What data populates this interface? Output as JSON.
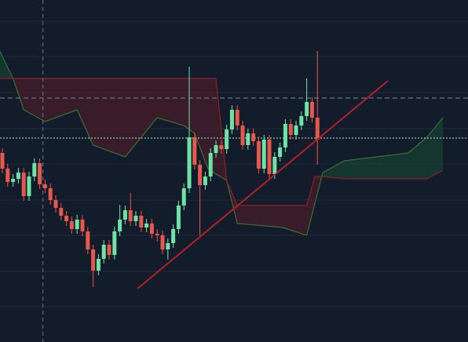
{
  "chart_data": {
    "type": "candlestick",
    "background": "#131c2b",
    "xlim": [
      -0.44,
      87.2
    ],
    "ylim": [
      0,
      436
    ],
    "grid_y": [
      409,
      364,
      318,
      272,
      227,
      181,
      136,
      90,
      45
    ],
    "up_color": "#6ee3a8",
    "down_color": "#e6574d",
    "open": [
      241,
      221,
      204,
      208,
      216,
      186,
      211,
      228,
      201,
      196,
      181,
      171,
      161,
      154,
      144,
      156,
      141,
      118,
      91,
      106,
      124,
      111,
      141,
      156,
      168,
      154,
      161,
      146,
      151,
      138,
      136,
      118,
      126,
      144,
      174,
      196,
      261,
      226,
      200,
      211,
      241,
      251,
      246,
      271,
      296,
      276,
      251,
      266,
      256,
      221,
      258,
      214,
      236,
      248,
      278,
      264,
      276,
      288,
      306,
      286
    ],
    "high": [
      247,
      227,
      214,
      222,
      222,
      217,
      234,
      234,
      207,
      202,
      187,
      177,
      167,
      160,
      162,
      162,
      147,
      124,
      112,
      130,
      130,
      147,
      175,
      174,
      190,
      167,
      167,
      157,
      157,
      144,
      142,
      132,
      150,
      180,
      202,
      351,
      267,
      232,
      217,
      247,
      257,
      257,
      277,
      302,
      302,
      282,
      272,
      272,
      262,
      264,
      264,
      242,
      254,
      284,
      284,
      282,
      294,
      336,
      312,
      371
    ],
    "low": [
      215,
      198,
      198,
      202,
      180,
      180,
      205,
      195,
      190,
      175,
      165,
      155,
      148,
      138,
      138,
      135,
      112,
      70,
      85,
      100,
      105,
      105,
      135,
      150,
      148,
      148,
      140,
      140,
      132,
      128,
      112,
      105,
      120,
      138,
      168,
      190,
      220,
      136,
      194,
      205,
      235,
      240,
      240,
      265,
      270,
      245,
      245,
      250,
      215,
      215,
      208,
      208,
      230,
      242,
      258,
      258,
      270,
      282,
      280,
      226
    ],
    "close": [
      221,
      204,
      208,
      216,
      186,
      211,
      228,
      201,
      196,
      181,
      171,
      161,
      154,
      144,
      156,
      141,
      118,
      91,
      106,
      124,
      111,
      141,
      156,
      168,
      154,
      161,
      146,
      151,
      138,
      136,
      118,
      126,
      144,
      174,
      196,
      261,
      226,
      200,
      211,
      241,
      251,
      246,
      271,
      296,
      276,
      251,
      266,
      256,
      221,
      258,
      214,
      236,
      248,
      278,
      264,
      276,
      288,
      306,
      286,
      258
    ],
    "cloud": {
      "x": [
        -0.5,
        2,
        4,
        8,
        14,
        17,
        23,
        29,
        34,
        36,
        38.5,
        40,
        42,
        44,
        52.5,
        57,
        58.5,
        60,
        64,
        70,
        76,
        79.5,
        82.5
      ],
      "span_a": {
        "color": "#3d6e33",
        "values": [
          371,
          336,
          296,
          281,
          296,
          251,
          236,
          286,
          276,
          266,
          221,
          214,
          206,
          151,
          146,
          136,
          176,
          216,
          231,
          236,
          241,
          261,
          286
        ]
      },
      "span_b": {
        "color": "#8e1f27",
        "values": [
          336,
          336,
          336,
          336,
          336,
          336,
          336,
          336,
          336,
          336,
          336,
          336,
          206,
          174,
          174,
          174,
          211,
          211,
          208,
          208,
          208,
          208,
          219
        ]
      },
      "bull_fill": "rgba(25,95,55,0.38)",
      "bear_fill": "rgba(120,28,40,0.38)"
    },
    "trendline": {
      "x": [
        25.3,
        72.2
      ],
      "y": [
        68,
        333
      ],
      "color": "#b3202a"
    },
    "hlines": [
      {
        "value": 311,
        "color": "#7d8796",
        "dash": "6,4"
      },
      {
        "value": 260,
        "color": "#a8e6e0",
        "dash": "2,2"
      }
    ],
    "vline": {
      "value": 7.6,
      "color": "#6c7684",
      "dash": "5,4"
    }
  }
}
